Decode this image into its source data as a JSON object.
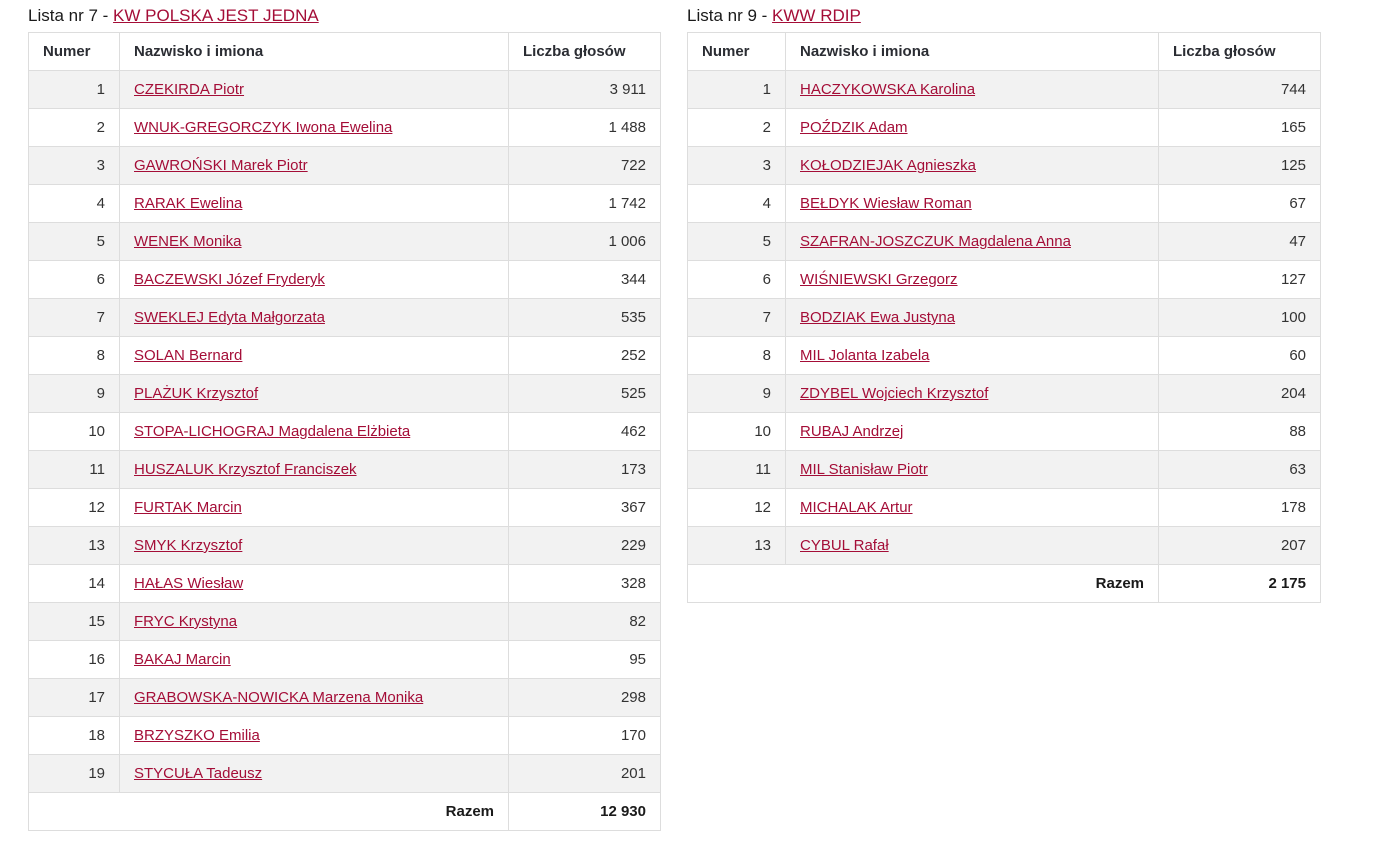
{
  "colors": {
    "link_accent": "#a40d37",
    "body_text": "#333333",
    "header_text": "#2b2d33",
    "row_stripe": "#f2f2f2",
    "border": "#dddddd",
    "background": "#ffffff"
  },
  "tables": [
    {
      "title_prefix": "Lista nr 7 - ",
      "committee_link": "KW POLSKA JEST JEDNA",
      "columns": [
        "Numer",
        "Nazwisko i imiona",
        "Liczba głosów"
      ],
      "rows": [
        [
          "1",
          "CZEKIRDA Piotr",
          "3 911"
        ],
        [
          "2",
          "WNUK-GREGORCZYK Iwona Ewelina",
          "1 488"
        ],
        [
          "3",
          "GAWROŃSKI Marek Piotr",
          "722"
        ],
        [
          "4",
          "RARAK Ewelina",
          "1 742"
        ],
        [
          "5",
          "WENEK Monika",
          "1 006"
        ],
        [
          "6",
          "BACZEWSKI Józef Fryderyk",
          "344"
        ],
        [
          "7",
          "SWEKLEJ Edyta Małgorzata",
          "535"
        ],
        [
          "8",
          "SOLAN Bernard",
          "252"
        ],
        [
          "9",
          "PLAŻUK Krzysztof",
          "525"
        ],
        [
          "10",
          "STOPA-LICHOGRAJ Magdalena Elżbieta",
          "462"
        ],
        [
          "11",
          "HUSZALUK Krzysztof Franciszek",
          "173"
        ],
        [
          "12",
          "FURTAK Marcin",
          "367"
        ],
        [
          "13",
          "SMYK Krzysztof",
          "229"
        ],
        [
          "14",
          "HAŁAS Wiesław",
          "328"
        ],
        [
          "15",
          "FRYC Krystyna",
          "82"
        ],
        [
          "16",
          "BAKAJ Marcin",
          "95"
        ],
        [
          "17",
          "GRABOWSKA-NOWICKA Marzena Monika",
          "298"
        ],
        [
          "18",
          "BRZYSZKO Emilia",
          "170"
        ],
        [
          "19",
          "STYCUŁA Tadeusz",
          "201"
        ]
      ],
      "total_label": "Razem",
      "total_value": "12 930"
    },
    {
      "title_prefix": "Lista nr 9 - ",
      "committee_link": "KWW RDIP",
      "columns": [
        "Numer",
        "Nazwisko i imiona",
        "Liczba głosów"
      ],
      "rows": [
        [
          "1",
          "HACZYKOWSKA Karolina",
          "744"
        ],
        [
          "2",
          "POŹDZIK Adam",
          "165"
        ],
        [
          "3",
          "KOŁODZIEJAK Agnieszka",
          "125"
        ],
        [
          "4",
          "BEŁDYK Wiesław Roman",
          "67"
        ],
        [
          "5",
          "SZAFRAN-JOSZCZUK Magdalena Anna",
          "47"
        ],
        [
          "6",
          "WIŚNIEWSKI Grzegorz",
          "127"
        ],
        [
          "7",
          "BODZIAK Ewa Justyna",
          "100"
        ],
        [
          "8",
          "MIL Jolanta Izabela",
          "60"
        ],
        [
          "9",
          "ZDYBEL Wojciech Krzysztof",
          "204"
        ],
        [
          "10",
          "RUBAJ Andrzej",
          "88"
        ],
        [
          "11",
          "MIL Stanisław Piotr",
          "63"
        ],
        [
          "12",
          "MICHALAK Artur",
          "178"
        ],
        [
          "13",
          "CYBUL Rafał",
          "207"
        ]
      ],
      "total_label": "Razem",
      "total_value": "2 175"
    }
  ]
}
